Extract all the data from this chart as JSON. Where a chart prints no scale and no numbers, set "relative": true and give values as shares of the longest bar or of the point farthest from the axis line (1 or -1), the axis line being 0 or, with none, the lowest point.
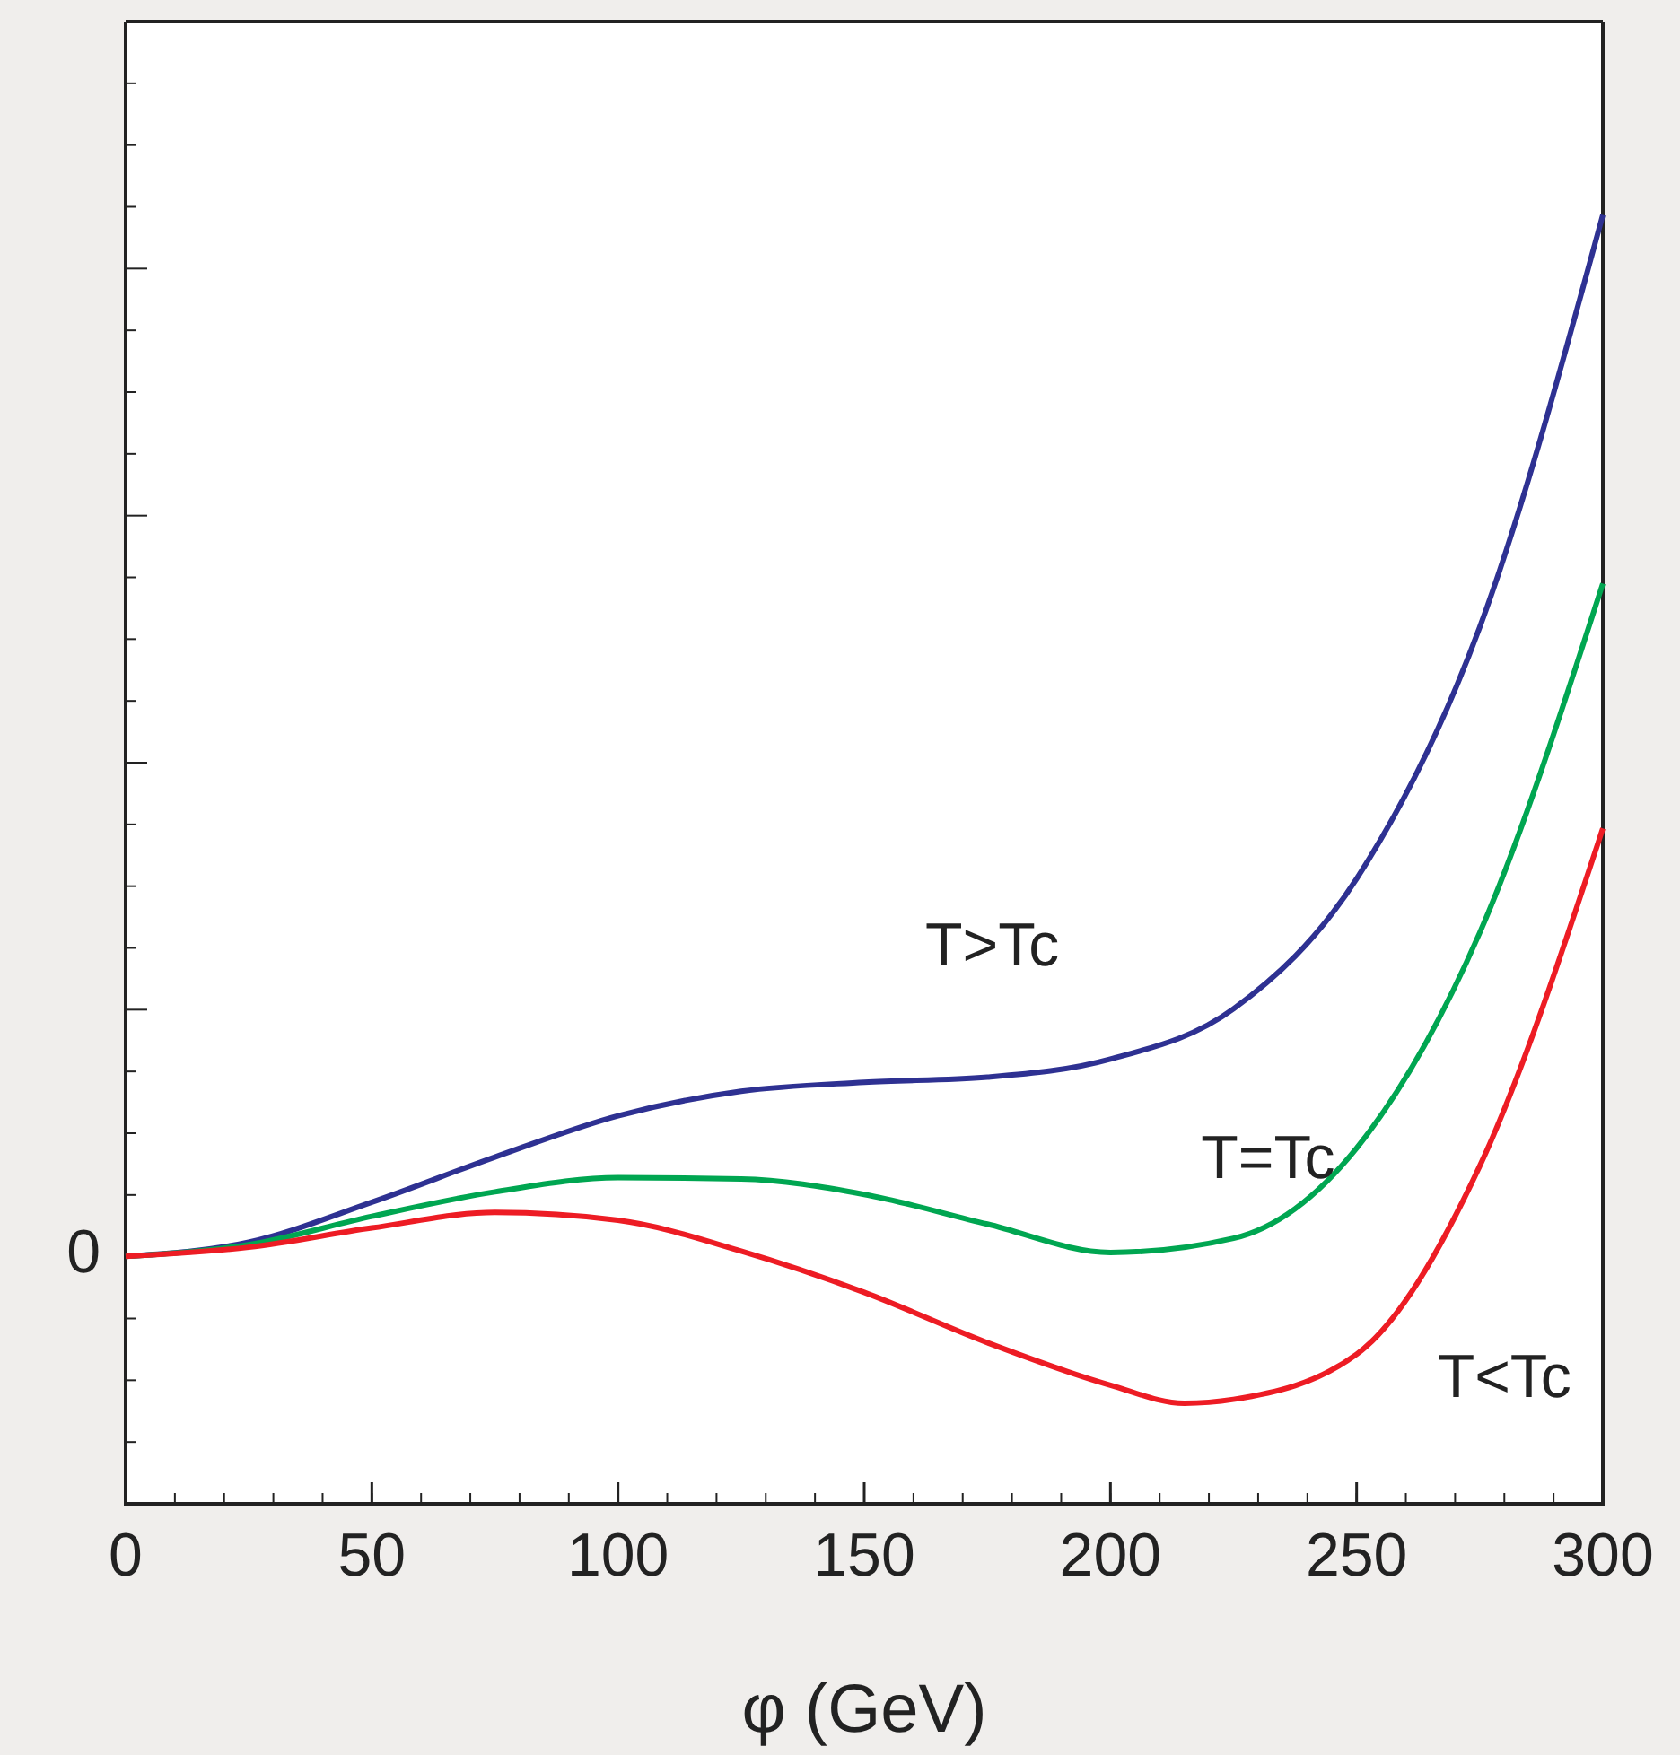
{
  "chart_data": {
    "type": "line",
    "relative": true,
    "xlabel": "φ (GeV)",
    "xlim": [
      0,
      300
    ],
    "xticks": [
      0,
      50,
      100,
      150,
      200,
      250,
      300
    ],
    "annotations": [
      {
        "text": "0",
        "x": 0,
        "y": 0.192
      }
    ],
    "series": [
      {
        "name": "T>Tc",
        "color": "#2e3192",
        "x": [
          0,
          25,
          50,
          75,
          100,
          125,
          150,
          175,
          200,
          225,
          250,
          275,
          300
        ],
        "values": [
          0.192,
          0.203,
          0.234,
          0.269,
          0.301,
          0.32,
          0.327,
          0.331,
          0.345,
          0.384,
          0.485,
          0.68,
          1.0
        ]
      },
      {
        "name": "T=Tc",
        "color": "#00a651",
        "x": [
          0,
          25,
          50,
          75,
          100,
          125,
          150,
          175,
          200,
          225,
          250,
          275,
          300
        ],
        "values": [
          0.192,
          0.201,
          0.223,
          0.242,
          0.253,
          0.252,
          0.24,
          0.217,
          0.195,
          0.206,
          0.276,
          0.443,
          0.714
        ]
      },
      {
        "name": "T<Tc",
        "color": "#ed1c24",
        "x": [
          0,
          25,
          50,
          75,
          100,
          125,
          150,
          175,
          200,
          215,
          225,
          250,
          275,
          300
        ],
        "values": [
          0.192,
          0.199,
          0.214,
          0.226,
          0.22,
          0.196,
          0.164,
          0.125,
          0.092,
          0.078,
          0.081,
          0.116,
          0.262,
          0.524
        ]
      }
    ],
    "line_style": "solid",
    "marker": "none",
    "grid": false,
    "legend": false
  }
}
